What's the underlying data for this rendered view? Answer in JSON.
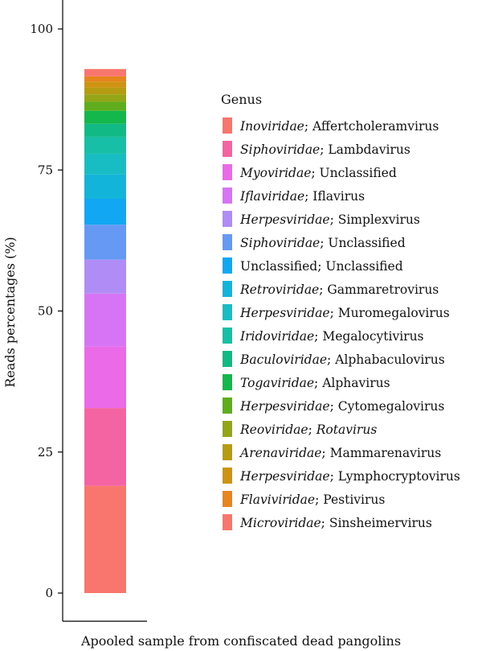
{
  "chart_data": {
    "type": "bar",
    "stacked": true,
    "xlabel": "Apooled sample from confiscated dead pangolins",
    "ylabel": "Reads percentages (%)",
    "ylim": [
      0,
      100
    ],
    "yticks": [
      "0",
      "25",
      "50",
      "75",
      "100"
    ],
    "ytick_values": [
      0,
      25,
      50,
      75,
      100
    ],
    "legend_title": "Genus",
    "legend_position": "right",
    "grid": false,
    "series": [
      {
        "family": "Inoviridae",
        "sep": "; ",
        "genus": "Affertcholeramvirus",
        "genus_italic": false,
        "value": 19.0,
        "color": "#F8766D"
      },
      {
        "family": "Siphoviridae",
        "sep": "; ",
        "genus": "Lambdavirus",
        "genus_italic": false,
        "value": 13.8,
        "color": "#F564A2"
      },
      {
        "family": "Myoviridae",
        "sep": "; ",
        "genus": "Unclassified",
        "genus_italic": false,
        "value": 10.9,
        "color": "#EA6AE8"
      },
      {
        "family": "Iflaviridae",
        "sep": "; ",
        "genus": "Iflavirus",
        "genus_italic": false,
        "value": 9.4,
        "color": "#D774F5"
      },
      {
        "family": "Herpesviridae",
        "sep": "; ",
        "genus": "Simplexvirus",
        "genus_italic": false,
        "value": 6.0,
        "color": "#B08CF6"
      },
      {
        "family": "Siphoviridae",
        "sep": "; ",
        "genus": "Unclassified",
        "genus_italic": false,
        "value": 6.2,
        "color": "#6699F4"
      },
      {
        "family": "Unclassified",
        "family_italic": false,
        "sep": "; ",
        "genus": "Unclassified",
        "genus_italic": false,
        "value": 4.6,
        "color": "#12A7F3"
      },
      {
        "family": "Retroviridae",
        "sep": "; ",
        "genus": "Gammaretrovirus",
        "genus_italic": false,
        "value": 4.3,
        "color": "#13B4DA"
      },
      {
        "family": "Herpesviridae",
        "sep": "; ",
        "genus": "Muromegalovirus",
        "genus_italic": false,
        "value": 3.7,
        "color": "#18BDC3"
      },
      {
        "family": "Iridoviridae",
        "sep": "; ",
        "genus": "Megalocytivirus",
        "genus_italic": false,
        "value": 3.0,
        "color": "#16BFA5"
      },
      {
        "family": "Baculoviridae",
        "sep": "; ",
        "genus": "Alphabaculovirus",
        "genus_italic": false,
        "value": 2.3,
        "color": "#11B985"
      },
      {
        "family": "Togaviridae",
        "sep": "; ",
        "genus": "Alphavirus",
        "genus_italic": false,
        "value": 2.3,
        "color": "#13B74B"
      },
      {
        "family": "Herpesviridae",
        "sep": "; ",
        "genus": "Cytomegalovirus",
        "genus_italic": false,
        "value": 1.6,
        "color": "#5FAD1D"
      },
      {
        "family": "Reoviridae",
        "sep": "; ",
        "genus": "Rotavirus",
        "genus_italic": true,
        "value": 1.3,
        "color": "#94A617"
      },
      {
        "family": "Arenaviridae",
        "sep": "; ",
        "genus": "Mammarenavirus",
        "genus_italic": false,
        "value": 1.2,
        "color": "#B59C12"
      },
      {
        "family": "Herpesviridae",
        "sep": "; ",
        "genus": "Lymphocryptovirus",
        "genus_italic": false,
        "value": 1.1,
        "color": "#CE9312"
      },
      {
        "family": "Flaviviridae",
        "sep": "; ",
        "genus": "Pestivirus",
        "genus_italic": false,
        "value": 0.9,
        "color": "#E7851E"
      },
      {
        "family": "Microviridae",
        "sep": "; ",
        "genus": "Sinsheimervirus",
        "genus_italic": false,
        "value": 1.3,
        "color": "#F8766D"
      }
    ]
  }
}
